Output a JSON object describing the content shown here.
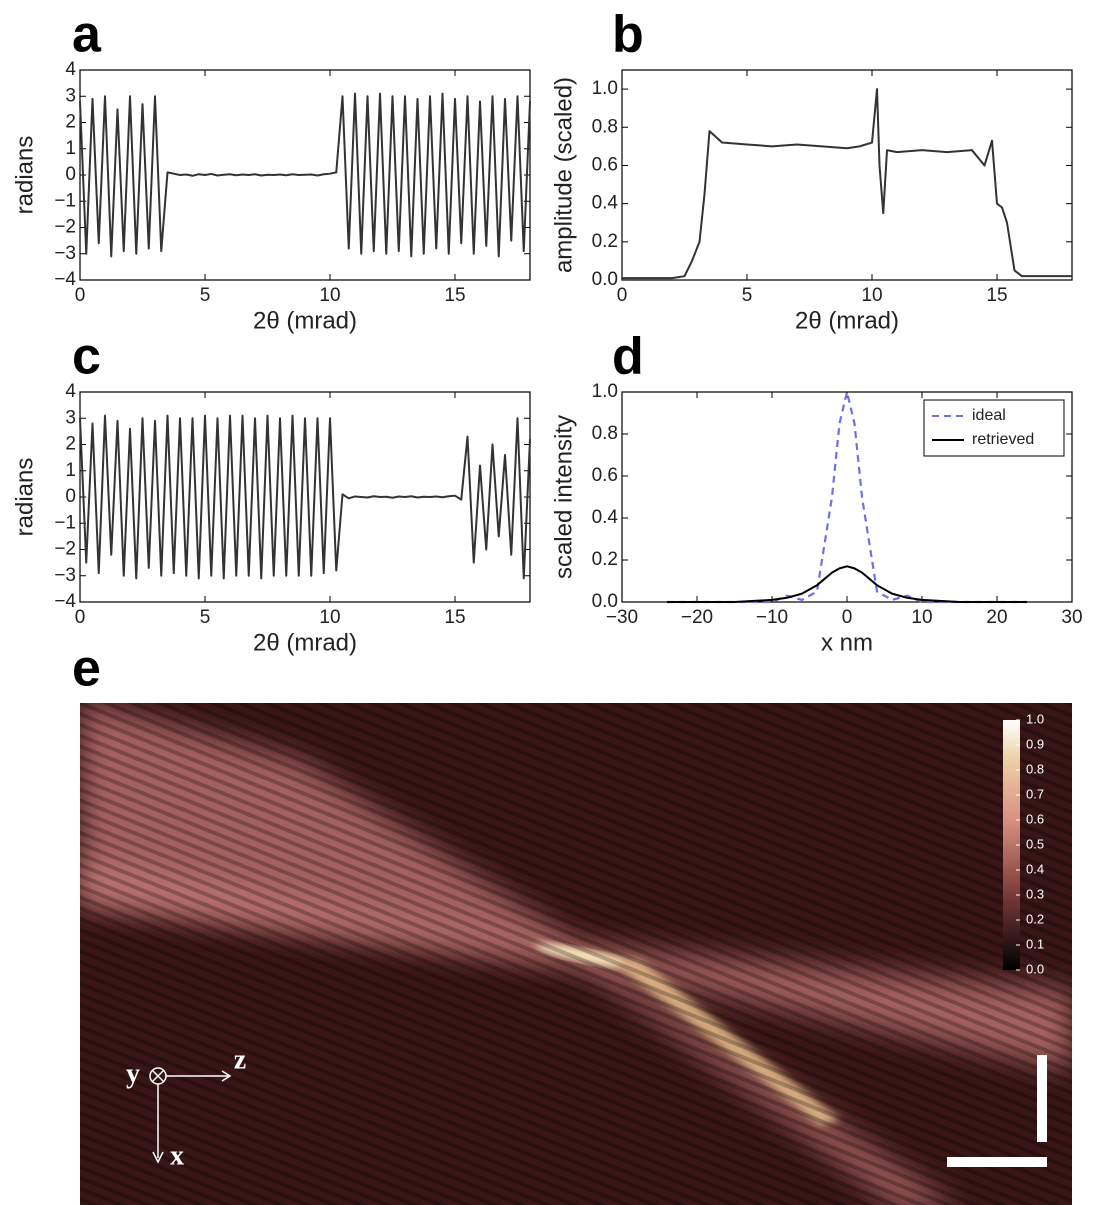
{
  "chart_data": [
    {
      "type": "line",
      "label": "a",
      "ylabel": "radians",
      "xlabel": "2θ (mrad)",
      "color": "#333333",
      "x": [
        0,
        0.25,
        0.5,
        0.75,
        1,
        1.25,
        1.5,
        1.75,
        2,
        2.25,
        2.5,
        2.75,
        3,
        3.25,
        3.5,
        3.75,
        4,
        4.25,
        4.5,
        4.75,
        5,
        5.25,
        5.5,
        5.75,
        6,
        6.25,
        6.5,
        6.75,
        7,
        7.25,
        7.5,
        7.75,
        8,
        8.25,
        8.5,
        8.75,
        9,
        9.25,
        9.5,
        9.75,
        10,
        10.25,
        10.5,
        10.75,
        11,
        11.25,
        11.5,
        11.75,
        12,
        12.25,
        12.5,
        12.75,
        13,
        13.25,
        13.5,
        13.75,
        14,
        14.25,
        14.5,
        14.75,
        15,
        15.25,
        15.5,
        15.75,
        16,
        16.25,
        16.5,
        16.75,
        17,
        17.25,
        17.5,
        17.75,
        18
      ],
      "values": [
        2.8,
        -3.0,
        2.9,
        -2.6,
        3.0,
        -3.1,
        2.5,
        -2.9,
        3.0,
        -3.0,
        2.7,
        -2.8,
        3.0,
        -2.9,
        0.1,
        0.05,
        0.0,
        0.02,
        -0.03,
        0.03,
        0.0,
        0.04,
        -0.02,
        0.01,
        0.03,
        -0.01,
        0.02,
        0.0,
        0.03,
        -0.02,
        0.01,
        0.0,
        0.02,
        -0.01,
        0.03,
        0.0,
        0.01,
        0.02,
        -0.02,
        0.03,
        0.05,
        0.1,
        3.0,
        -2.8,
        3.1,
        -3.0,
        3.0,
        -2.9,
        3.1,
        -3.0,
        3.0,
        -2.9,
        3.0,
        -3.1,
        2.9,
        -3.0,
        3.0,
        -2.8,
        3.1,
        -3.0,
        2.9,
        -2.6,
        3.0,
        -3.0,
        2.8,
        -2.7,
        3.0,
        -3.1,
        2.9,
        -2.5,
        3.0,
        -2.9,
        2.8
      ],
      "xlim": [
        0,
        18
      ],
      "xticks": [
        0,
        5,
        10,
        15
      ],
      "ylim": [
        -4,
        4
      ],
      "yticks": [
        {
          "value": -4,
          "label": "−4"
        },
        {
          "value": -3,
          "label": "−3"
        },
        {
          "value": -2,
          "label": "−2"
        },
        {
          "value": -1,
          "label": "−1"
        },
        0,
        1,
        2,
        3,
        4
      ]
    },
    {
      "type": "line",
      "label": "b",
      "ylabel": "amplitude (scaled)",
      "xlabel": "2θ (mrad)",
      "color": "#333333",
      "x": [
        0,
        1,
        2,
        2.5,
        2.8,
        3.1,
        3.3,
        3.5,
        4,
        5,
        6,
        7,
        8,
        9,
        9.5,
        10,
        10.2,
        10.3,
        10.45,
        10.6,
        11,
        12,
        13,
        14,
        14.5,
        14.8,
        15,
        15.2,
        15.4,
        15.7,
        16,
        17,
        18
      ],
      "values": [
        0.01,
        0.01,
        0.01,
        0.02,
        0.1,
        0.2,
        0.45,
        0.78,
        0.72,
        0.71,
        0.7,
        0.71,
        0.7,
        0.69,
        0.7,
        0.72,
        1.0,
        0.6,
        0.35,
        0.68,
        0.67,
        0.68,
        0.67,
        0.68,
        0.6,
        0.73,
        0.4,
        0.38,
        0.3,
        0.05,
        0.02,
        0.02,
        0.02
      ],
      "xlim": [
        0,
        18
      ],
      "xticks": [
        0,
        5,
        10,
        15
      ],
      "ylim": [
        0,
        1.1
      ],
      "yticks": [
        {
          "value": 0,
          "label": "0.0"
        },
        {
          "value": 0.2,
          "label": "0.2"
        },
        {
          "value": 0.4,
          "label": "0.4"
        },
        {
          "value": 0.6,
          "label": "0.6"
        },
        {
          "value": 0.8,
          "label": "0.8"
        },
        {
          "value": 1,
          "label": "1.0"
        }
      ]
    },
    {
      "type": "line",
      "label": "c",
      "ylabel": "radians",
      "xlabel": "2θ (mrad)",
      "color": "#333333",
      "x": [
        0,
        0.25,
        0.5,
        0.75,
        1,
        1.25,
        1.5,
        1.75,
        2,
        2.25,
        2.5,
        2.75,
        3,
        3.25,
        3.5,
        3.75,
        4,
        4.25,
        4.5,
        4.75,
        5,
        5.25,
        5.5,
        5.75,
        6,
        6.25,
        6.5,
        6.75,
        7,
        7.25,
        7.5,
        7.75,
        8,
        8.25,
        8.5,
        8.75,
        9,
        9.25,
        9.5,
        9.75,
        10,
        10.25,
        10.5,
        10.75,
        11,
        11.25,
        11.5,
        11.75,
        12,
        12.25,
        12.5,
        12.75,
        13,
        13.25,
        13.5,
        13.75,
        14,
        14.25,
        14.5,
        14.75,
        15,
        15.25,
        15.5,
        15.75,
        16,
        16.25,
        16.5,
        16.75,
        17,
        17.25,
        17.5,
        17.75,
        18
      ],
      "values": [
        3.0,
        -2.5,
        2.8,
        -2.9,
        3.1,
        -2.2,
        2.9,
        -3.0,
        2.6,
        -3.1,
        3.0,
        -2.7,
        2.9,
        -3.0,
        3.1,
        -2.9,
        3.0,
        -3.0,
        3.0,
        -3.1,
        3.1,
        -3.0,
        3.0,
        -3.1,
        3.1,
        -3.0,
        3.1,
        -3.0,
        3.0,
        -3.1,
        3.1,
        -3.0,
        3.0,
        -3.0,
        3.1,
        -3.0,
        3.0,
        -3.0,
        3.0,
        -2.9,
        3.0,
        -2.8,
        0.1,
        -0.05,
        0.02,
        0.0,
        -0.02,
        0.03,
        0.0,
        0.01,
        -0.03,
        0.02,
        0.0,
        0.03,
        -0.02,
        0.01,
        0.0,
        0.02,
        -0.01,
        0.03,
        0.05,
        -0.1,
        2.3,
        -2.5,
        1.2,
        -2.0,
        2.0,
        -1.5,
        1.6,
        -2.2,
        3.0,
        -3.1,
        2.2
      ],
      "xlim": [
        0,
        18
      ],
      "xticks": [
        0,
        5,
        10,
        15
      ],
      "ylim": [
        -4,
        4
      ],
      "yticks": [
        {
          "value": -4,
          "label": "−4"
        },
        {
          "value": -3,
          "label": "−3"
        },
        {
          "value": -2,
          "label": "−2"
        },
        {
          "value": -1,
          "label": "−1"
        },
        0,
        1,
        2,
        3,
        4
      ]
    },
    {
      "type": "line",
      "label": "d",
      "ylabel": "scaled intensity",
      "xlabel": "x  nm",
      "x": [
        -24,
        -15,
        -10,
        -8,
        -6,
        -4,
        -2,
        -1,
        0,
        1,
        2,
        4,
        6,
        8,
        10,
        15,
        24
      ],
      "series": [
        {
          "name": "ideal",
          "color": "#7070e0",
          "dashed": true,
          "values": [
            0,
            0,
            0,
            0.03,
            0.01,
            0.05,
            0.5,
            0.85,
            1.0,
            0.85,
            0.5,
            0.05,
            0.01,
            0.03,
            0,
            0,
            0
          ]
        },
        {
          "name": "retrieved",
          "color": "#000000",
          "dashed": false,
          "values": [
            0,
            0,
            0.01,
            0.02,
            0.04,
            0.08,
            0.14,
            0.16,
            0.17,
            0.16,
            0.14,
            0.08,
            0.04,
            0.02,
            0.01,
            0,
            0
          ]
        }
      ],
      "legend": "upper right",
      "xlim": [
        -30,
        30
      ],
      "xticks": [
        {
          "value": -30,
          "label": "−30"
        },
        {
          "value": -20,
          "label": "−20"
        },
        {
          "value": -10,
          "label": "−10"
        },
        0,
        10,
        20,
        30
      ],
      "ylim": [
        0,
        1
      ],
      "yticks": [
        {
          "value": 0,
          "label": "0.0"
        },
        {
          "value": 0.2,
          "label": "0.2"
        },
        {
          "value": 0.4,
          "label": "0.4"
        },
        {
          "value": 0.6,
          "label": "0.6"
        },
        {
          "value": 0.8,
          "label": "0.8"
        },
        {
          "value": 1,
          "label": "1.0"
        }
      ]
    },
    {
      "type": "image",
      "label": "e",
      "axis_labels": {
        "y": "y",
        "z": "z",
        "x": "x"
      },
      "colorbar": {
        "lim": [
          0,
          1
        ],
        "ticks": [
          {
            "value": 0,
            "label": "0.0"
          },
          {
            "value": 0.1,
            "label": "0.1"
          },
          {
            "value": 0.2,
            "label": "0.2"
          },
          {
            "value": 0.3,
            "label": "0.3"
          },
          {
            "value": 0.4,
            "label": "0.4"
          },
          {
            "value": 0.5,
            "label": "0.5"
          },
          {
            "value": 0.6,
            "label": "0.6"
          },
          {
            "value": 0.7,
            "label": "0.7"
          },
          {
            "value": 0.8,
            "label": "0.8"
          },
          {
            "value": 0.9,
            "label": "0.9"
          },
          {
            "value": 1,
            "label": "1.0"
          }
        ]
      }
    }
  ]
}
